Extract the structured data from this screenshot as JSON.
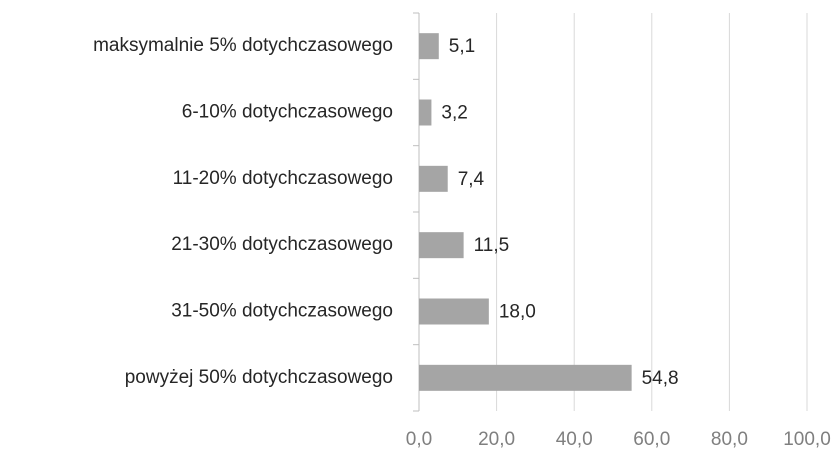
{
  "chart_data": {
    "type": "bar",
    "orientation": "horizontal",
    "categories": [
      "maksymalnie 5% dotychczasowego",
      "6-10% dotychczasowego",
      "11-20% dotychczasowego",
      "21-30% dotychczasowego",
      "31-50% dotychczasowego",
      "powyżej 50% dotychczasowego"
    ],
    "values": [
      5.1,
      3.2,
      7.4,
      11.5,
      18.0,
      54.8
    ],
    "value_labels": [
      "5,1",
      "3,2",
      "7,4",
      "11,5",
      "18,0",
      "54,8"
    ],
    "color": "#a5a5a5",
    "xlim": [
      0,
      100
    ],
    "xticks": [
      {
        "value": 0,
        "label": "0,0"
      },
      {
        "value": 20,
        "label": "20,0"
      },
      {
        "value": 40,
        "label": "40,0"
      },
      {
        "value": 60,
        "label": "60,0"
      },
      {
        "value": 80,
        "label": "80,0"
      },
      {
        "value": 100,
        "label": "100,0"
      }
    ],
    "grid": true
  }
}
